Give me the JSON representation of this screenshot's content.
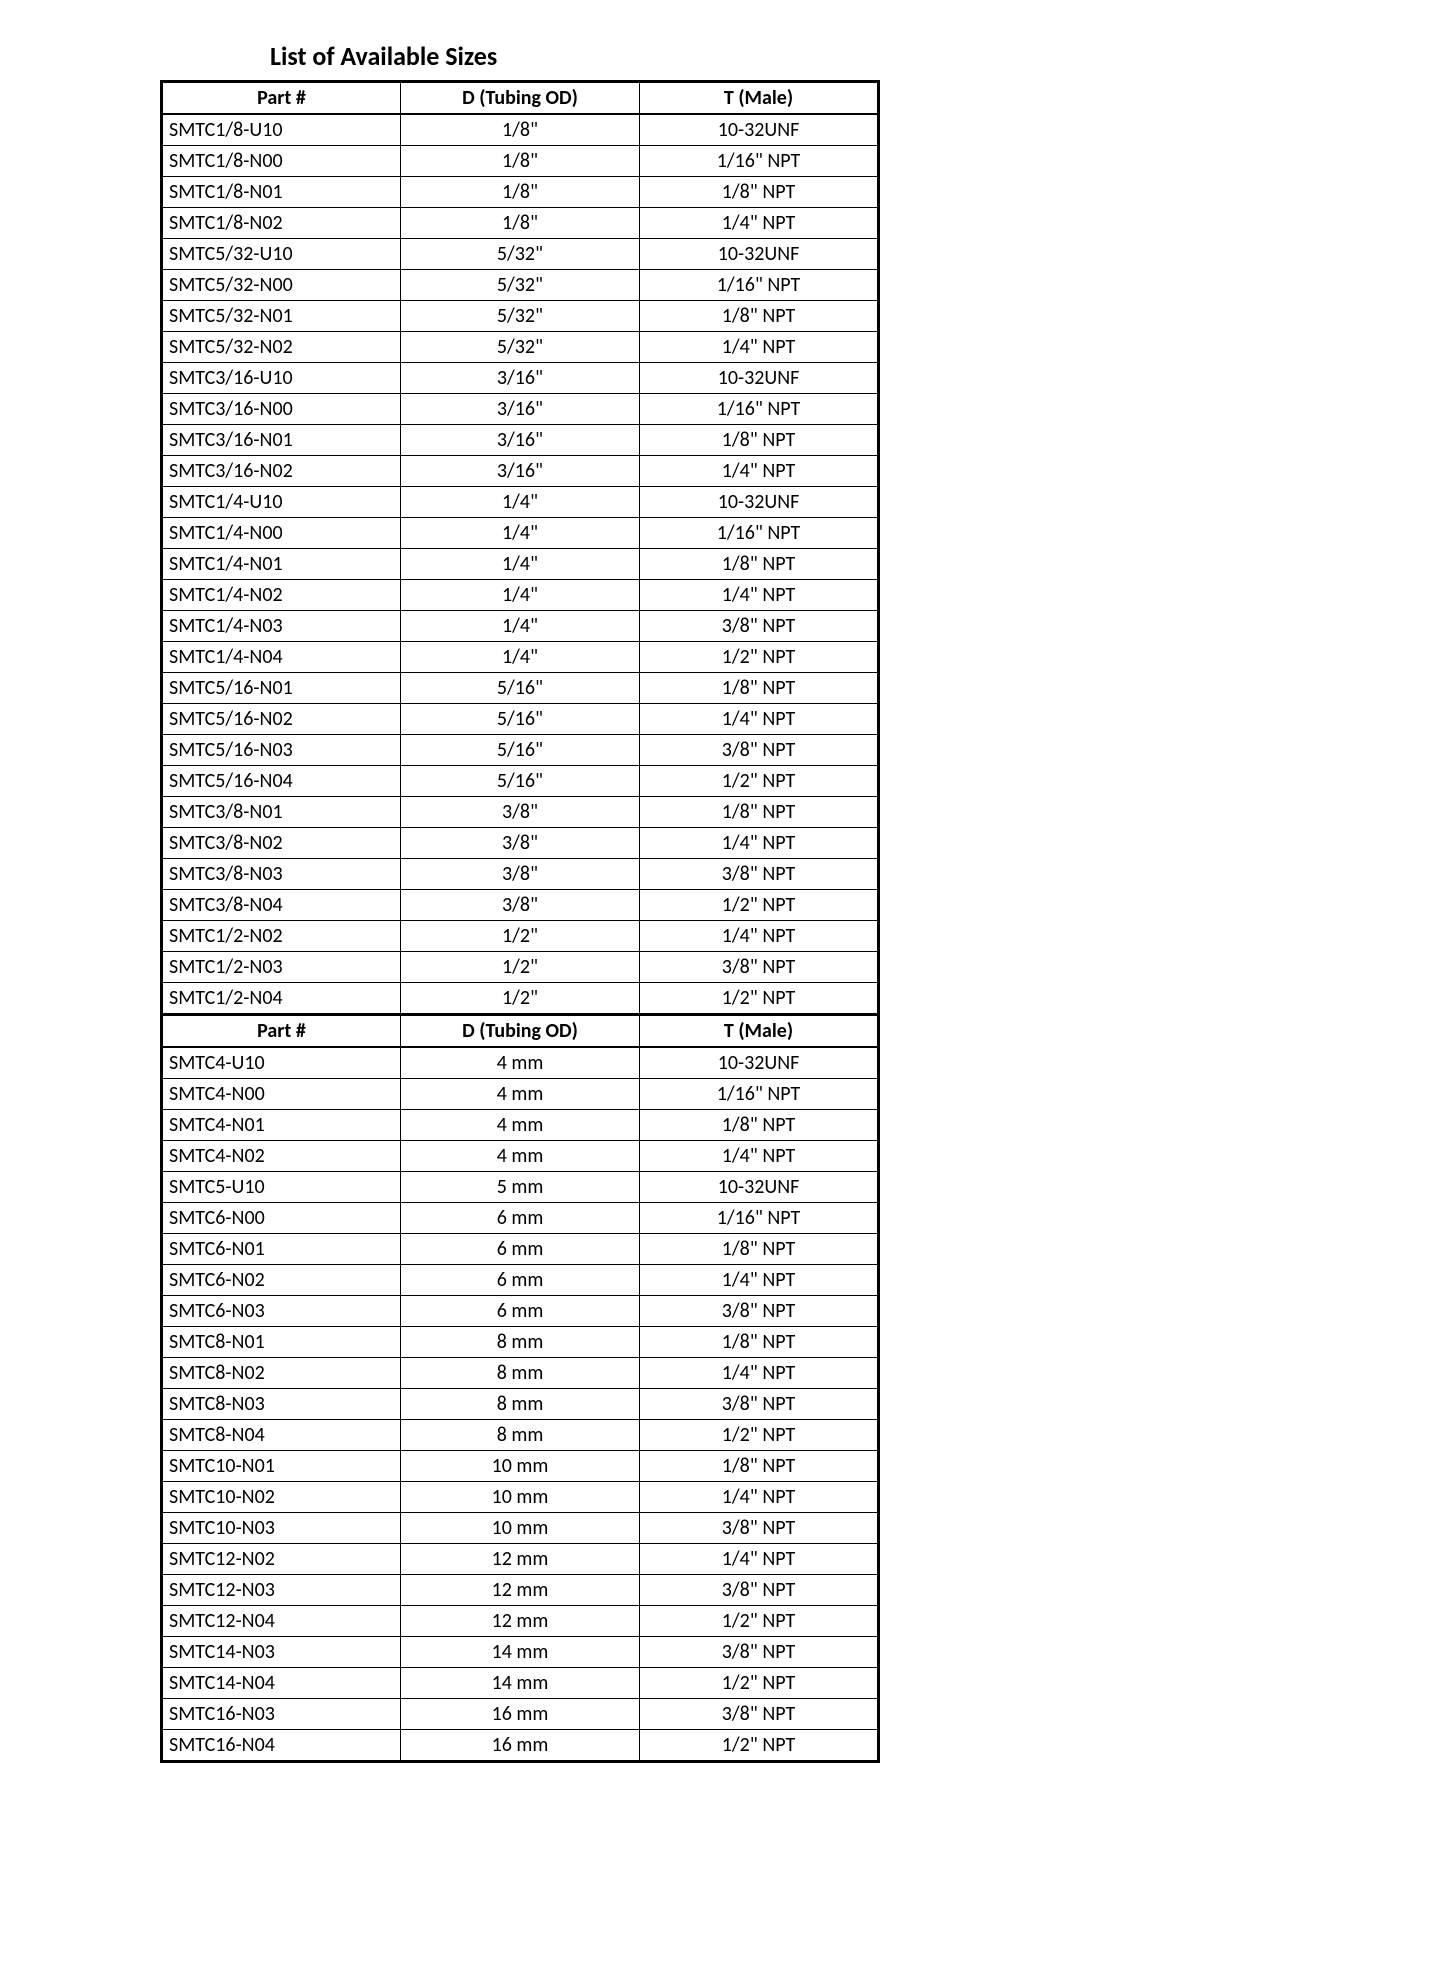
{
  "title": "List of Available Sizes",
  "headers": {
    "part": "Part #",
    "od": "D (Tubing OD)",
    "male": "T (Male)"
  },
  "section1": [
    {
      "part": "SMTC1/8-U10",
      "od": "1/8\"",
      "male": "10-32UNF"
    },
    {
      "part": "SMTC1/8-N00",
      "od": "1/8\"",
      "male": "1/16\" NPT"
    },
    {
      "part": "SMTC1/8-N01",
      "od": "1/8\"",
      "male": "1/8\" NPT"
    },
    {
      "part": "SMTC1/8-N02",
      "od": "1/8\"",
      "male": "1/4\" NPT"
    },
    {
      "part": "SMTC5/32-U10",
      "od": "5/32\"",
      "male": "10-32UNF"
    },
    {
      "part": "SMTC5/32-N00",
      "od": "5/32\"",
      "male": "1/16\" NPT"
    },
    {
      "part": "SMTC5/32-N01",
      "od": "5/32\"",
      "male": "1/8\" NPT"
    },
    {
      "part": "SMTC5/32-N02",
      "od": "5/32\"",
      "male": "1/4\" NPT"
    },
    {
      "part": "SMTC3/16-U10",
      "od": "3/16\"",
      "male": "10-32UNF"
    },
    {
      "part": "SMTC3/16-N00",
      "od": "3/16\"",
      "male": "1/16\" NPT"
    },
    {
      "part": "SMTC3/16-N01",
      "od": "3/16\"",
      "male": "1/8\" NPT"
    },
    {
      "part": "SMTC3/16-N02",
      "od": "3/16\"",
      "male": "1/4\" NPT"
    },
    {
      "part": "SMTC1/4-U10",
      "od": "1/4\"",
      "male": "10-32UNF"
    },
    {
      "part": "SMTC1/4-N00",
      "od": "1/4\"",
      "male": "1/16\" NPT"
    },
    {
      "part": "SMTC1/4-N01",
      "od": "1/4\"",
      "male": "1/8\" NPT"
    },
    {
      "part": "SMTC1/4-N02",
      "od": "1/4\"",
      "male": "1/4\" NPT"
    },
    {
      "part": "SMTC1/4-N03",
      "od": "1/4\"",
      "male": "3/8\" NPT"
    },
    {
      "part": "SMTC1/4-N04",
      "od": "1/4\"",
      "male": "1/2\" NPT"
    },
    {
      "part": "SMTC5/16-N01",
      "od": "5/16\"",
      "male": "1/8\" NPT"
    },
    {
      "part": "SMTC5/16-N02",
      "od": "5/16\"",
      "male": "1/4\" NPT"
    },
    {
      "part": "SMTC5/16-N03",
      "od": "5/16\"",
      "male": "3/8\" NPT"
    },
    {
      "part": "SMTC5/16-N04",
      "od": "5/16\"",
      "male": "1/2\" NPT"
    },
    {
      "part": "SMTC3/8-N01",
      "od": "3/8\"",
      "male": "1/8\" NPT"
    },
    {
      "part": "SMTC3/8-N02",
      "od": "3/8\"",
      "male": "1/4\" NPT"
    },
    {
      "part": "SMTC3/8-N03",
      "od": "3/8\"",
      "male": "3/8\" NPT"
    },
    {
      "part": "SMTC3/8-N04",
      "od": "3/8\"",
      "male": "1/2\" NPT"
    },
    {
      "part": "SMTC1/2-N02",
      "od": "1/2\"",
      "male": "1/4\" NPT"
    },
    {
      "part": "SMTC1/2-N03",
      "od": "1/2\"",
      "male": "3/8\" NPT"
    },
    {
      "part": "SMTC1/2-N04",
      "od": "1/2\"",
      "male": "1/2\" NPT"
    }
  ],
  "section2": [
    {
      "part": "SMTC4-U10",
      "od": "4 mm",
      "male": "10-32UNF"
    },
    {
      "part": "SMTC4-N00",
      "od": "4 mm",
      "male": "1/16\" NPT"
    },
    {
      "part": "SMTC4-N01",
      "od": "4 mm",
      "male": "1/8\" NPT"
    },
    {
      "part": "SMTC4-N02",
      "od": "4 mm",
      "male": "1/4\" NPT"
    },
    {
      "part": "SMTC5-U10",
      "od": "5 mm",
      "male": "10-32UNF"
    },
    {
      "part": "SMTC6-N00",
      "od": "6 mm",
      "male": "1/16\" NPT"
    },
    {
      "part": "SMTC6-N01",
      "od": "6 mm",
      "male": "1/8\" NPT"
    },
    {
      "part": "SMTC6-N02",
      "od": "6 mm",
      "male": "1/4\" NPT"
    },
    {
      "part": "SMTC6-N03",
      "od": "6 mm",
      "male": "3/8\" NPT"
    },
    {
      "part": "SMTC8-N01",
      "od": "8 mm",
      "male": "1/8\" NPT"
    },
    {
      "part": "SMTC8-N02",
      "od": "8 mm",
      "male": "1/4\" NPT"
    },
    {
      "part": "SMTC8-N03",
      "od": "8 mm",
      "male": "3/8\" NPT"
    },
    {
      "part": "SMTC8-N04",
      "od": "8 mm",
      "male": "1/2\" NPT"
    },
    {
      "part": "SMTC10-N01",
      "od": "10 mm",
      "male": "1/8\" NPT"
    },
    {
      "part": "SMTC10-N02",
      "od": "10 mm",
      "male": "1/4\" NPT"
    },
    {
      "part": "SMTC10-N03",
      "od": "10 mm",
      "male": "3/8\" NPT"
    },
    {
      "part": "SMTC12-N02",
      "od": "12 mm",
      "male": "1/4\" NPT"
    },
    {
      "part": "SMTC12-N03",
      "od": "12 mm",
      "male": "3/8\" NPT"
    },
    {
      "part": "SMTC12-N04",
      "od": "12 mm",
      "male": "1/2\" NPT"
    },
    {
      "part": "SMTC14-N03",
      "od": "14 mm",
      "male": "3/8\" NPT"
    },
    {
      "part": "SMTC14-N04",
      "od": "14 mm",
      "male": "1/2\" NPT"
    },
    {
      "part": "SMTC16-N03",
      "od": "16 mm",
      "male": "3/8\" NPT"
    },
    {
      "part": "SMTC16-N04",
      "od": "16 mm",
      "male": "1/2\" NPT"
    }
  ]
}
